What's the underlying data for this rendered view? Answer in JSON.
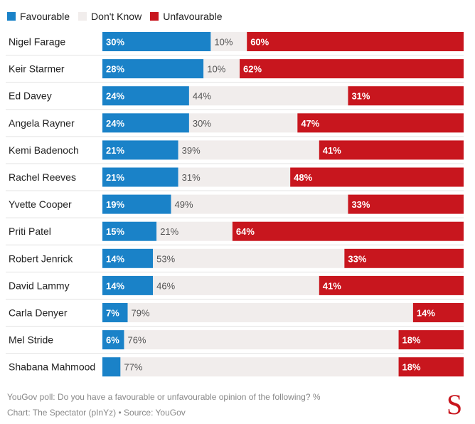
{
  "legend": [
    {
      "label": "Favourable",
      "color": "#1a82c8"
    },
    {
      "label": "Don't Know",
      "color": "#f1edec"
    },
    {
      "label": "Unfavourable",
      "color": "#c8161e"
    }
  ],
  "chart_data": {
    "type": "bar",
    "stacked": true,
    "orientation": "horizontal",
    "categories": [
      "Nigel Farage",
      "Keir Starmer",
      "Ed Davey",
      "Angela Rayner",
      "Kemi Badenoch",
      "Rachel Reeves",
      "Yvette Cooper",
      "Priti Patel",
      "Robert Jenrick",
      "David Lammy",
      "Carla Denyer",
      "Mel Stride",
      "Shabana Mahmood"
    ],
    "series": [
      {
        "name": "Favourable",
        "color": "#1a82c8",
        "values": [
          30,
          28,
          24,
          24,
          21,
          21,
          19,
          15,
          14,
          14,
          7,
          6,
          5
        ]
      },
      {
        "name": "Don't Know",
        "color": "#f1edec",
        "values": [
          10,
          10,
          44,
          30,
          39,
          31,
          49,
          21,
          53,
          46,
          79,
          76,
          77
        ]
      },
      {
        "name": "Unfavourable",
        "color": "#c8161e",
        "values": [
          60,
          62,
          31,
          47,
          41,
          48,
          33,
          64,
          33,
          41,
          14,
          18,
          18
        ]
      }
    ],
    "labels": {
      "Favourable": [
        "30%",
        "28%",
        "24%",
        "24%",
        "21%",
        "21%",
        "19%",
        "15%",
        "14%",
        "14%",
        "7%",
        "6%",
        ""
      ],
      "Don't Know": [
        "10%",
        "10%",
        "44%",
        "30%",
        "39%",
        "31%",
        "49%",
        "21%",
        "53%",
        "46%",
        "79%",
        "76%",
        "77%"
      ],
      "Unfavourable": [
        "60%",
        "62%",
        "31%",
        "47%",
        "41%",
        "48%",
        "33%",
        "64%",
        "33%",
        "41%",
        "14%",
        "18%",
        "18%"
      ]
    },
    "xlim": [
      0,
      100
    ],
    "grid": false,
    "legend_position": "top-left"
  },
  "footer": {
    "note": "YouGov poll: Do you have a favourable or unfavourable opinion of the following? %",
    "credit": "Chart: The Spectator (pInYz) • Source: YouGov"
  },
  "logo": "S"
}
